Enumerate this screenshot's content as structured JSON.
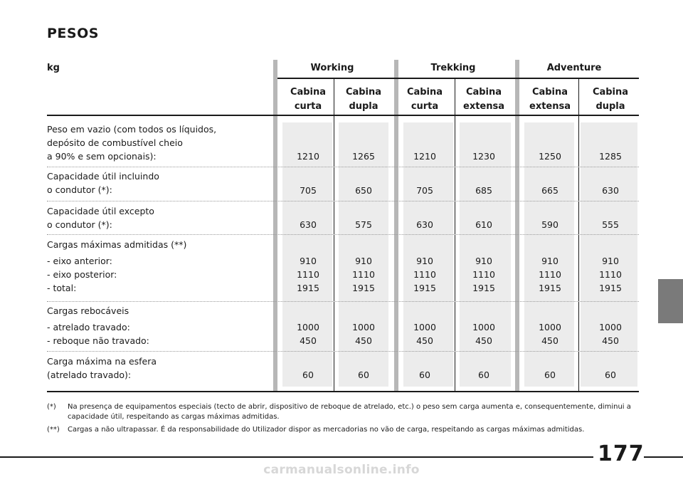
{
  "title": "PESOS",
  "unit": "kg",
  "groups": [
    "Working",
    "Trekking",
    "Adventure"
  ],
  "columns": [
    {
      "l1": "Cabina",
      "l2": "curta"
    },
    {
      "l1": "Cabina",
      "l2": "dupla"
    },
    {
      "l1": "Cabina",
      "l2": "curta"
    },
    {
      "l1": "Cabina",
      "l2": "extensa"
    },
    {
      "l1": "Cabina",
      "l2": "extensa"
    },
    {
      "l1": "Cabina",
      "l2": "dupla"
    }
  ],
  "rows": [
    {
      "labels": [
        "Peso em vazio (com todos os líquidos,",
        "depósito de combustível cheio",
        "a 90% e sem opcionais):"
      ],
      "values": [
        [
          "1210"
        ],
        [
          "1265"
        ],
        [
          "1210"
        ],
        [
          "1230"
        ],
        [
          "1250"
        ],
        [
          "1285"
        ]
      ]
    },
    {
      "labels": [
        "Capacidade útil incluindo",
        "o condutor (*):"
      ],
      "values": [
        [
          "705"
        ],
        [
          "650"
        ],
        [
          "705"
        ],
        [
          "685"
        ],
        [
          "665"
        ],
        [
          "630"
        ]
      ]
    },
    {
      "labels": [
        "Capacidade útil excepto",
        "o condutor (*):"
      ],
      "values": [
        [
          "630"
        ],
        [
          "575"
        ],
        [
          "630"
        ],
        [
          "610"
        ],
        [
          "590"
        ],
        [
          "555"
        ]
      ]
    },
    {
      "labels": [
        "Cargas máximas admitidas (**)",
        "- eixo anterior:",
        "- eixo posterior:",
        "- total:"
      ],
      "values": [
        [
          "910",
          "1110",
          "1915"
        ],
        [
          "910",
          "1110",
          "1915"
        ],
        [
          "910",
          "1110",
          "1915"
        ],
        [
          "910",
          "1110",
          "1915"
        ],
        [
          "910",
          "1110",
          "1915"
        ],
        [
          "910",
          "1110",
          "1915"
        ]
      ]
    },
    {
      "labels": [
        "Cargas rebocáveis",
        "- atrelado travado:",
        "- reboque não travado:"
      ],
      "values": [
        [
          "1000",
          "450"
        ],
        [
          "1000",
          "450"
        ],
        [
          "1000",
          "450"
        ],
        [
          "1000",
          "450"
        ],
        [
          "1000",
          "450"
        ],
        [
          "1000",
          "450"
        ]
      ]
    },
    {
      "labels": [
        "Carga máxima na esfera",
        "(atrelado travado):"
      ],
      "values": [
        [
          "60"
        ],
        [
          "60"
        ],
        [
          "60"
        ],
        [
          "60"
        ],
        [
          "60"
        ],
        [
          "60"
        ]
      ]
    }
  ],
  "footnotes": [
    {
      "mark": "(*)",
      "text": "Na presença de equipamentos especiais (tecto de abrir, dispositivo de reboque de atrelado, etc.) o peso sem carga aumenta e, consequentemente, diminui a capacidade útil, respeitando as cargas máximas admitidas."
    },
    {
      "mark": "(**)",
      "text": "Cargas a não ultrapassar. É da responsabilidade do Utilizador dispor as mercadorias no vão de carga, respeitando as cargas máximas admitidas."
    }
  ],
  "page_number": "177",
  "watermark": "carmanualsonline.info"
}
